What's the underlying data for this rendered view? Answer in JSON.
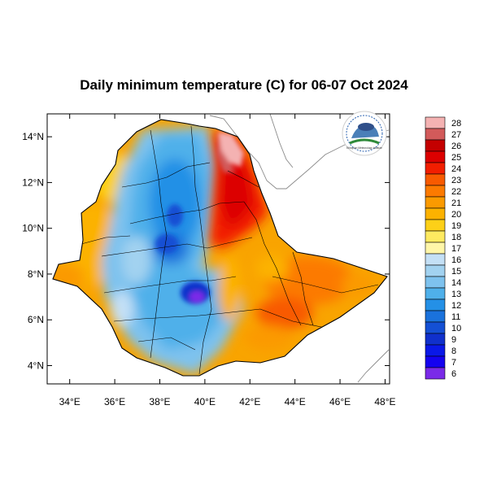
{
  "title": "Daily minimum temperature (C) for 06-07 Oct 2024",
  "x_ticks": [
    "34°E",
    "36°E",
    "38°E",
    "40°E",
    "42°E",
    "44°E",
    "46°E",
    "48°E"
  ],
  "y_ticks": [
    "14°N",
    "12°N",
    "10°N",
    "8°N",
    "6°N",
    "4°N"
  ],
  "x_range_deg": [
    33,
    48.2
  ],
  "y_range_deg": [
    3.2,
    15
  ],
  "logo": {
    "icon": "ethiopian-meteorology-institute-logo",
    "text": "Ethiopian Meteorology Institute"
  },
  "colorbar": {
    "levels": [
      "28",
      "27",
      "26",
      "25",
      "24",
      "23",
      "22",
      "21",
      "20",
      "19",
      "18",
      "17",
      "16",
      "15",
      "14",
      "13",
      "12",
      "11",
      "10",
      "9",
      "8",
      "7",
      "6"
    ],
    "colors": [
      "#f4b2b2",
      "#d25a5a",
      "#c40000",
      "#dc0000",
      "#f21e00",
      "#f85a00",
      "#fc7a00",
      "#fb9a00",
      "#fcb200",
      "#fdd018",
      "#feea60",
      "#fff6a8",
      "#c4e0f6",
      "#a2d2f0",
      "#7ec2ee",
      "#4fb0ea",
      "#2490e6",
      "#1a72dc",
      "#1450d4",
      "#1030cc",
      "#0a18e8",
      "#1402f0",
      "#7a2ae8"
    ]
  }
}
